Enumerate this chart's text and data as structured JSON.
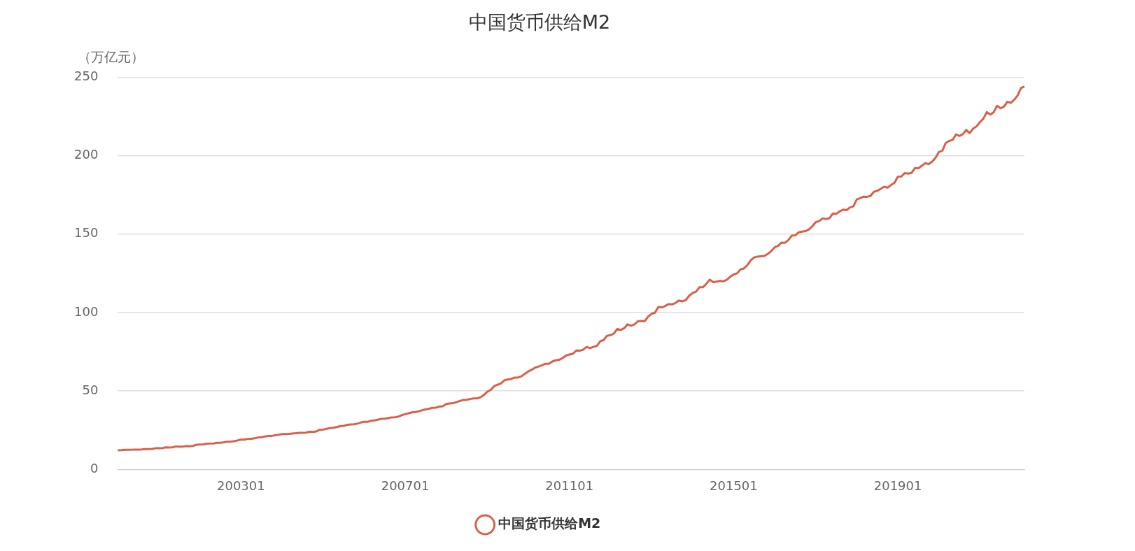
{
  "chart_data": {
    "type": "line",
    "title": "中国货币供给M2",
    "ylabel": "（万亿元）",
    "categories": [
      null,
      null,
      null,
      null,
      null,
      null,
      null,
      null,
      null,
      null,
      null,
      null,
      null,
      null,
      null,
      null,
      null,
      null,
      null,
      null,
      null,
      null,
      null,
      null,
      null,
      null,
      null,
      null,
      null,
      null,
      null,
      null,
      null,
      null,
      null,
      null,
      "200301",
      null,
      null,
      null,
      null,
      null,
      null,
      null,
      null,
      null,
      null,
      null,
      null,
      null,
      null,
      null,
      null,
      null,
      null,
      null,
      null,
      null,
      null,
      null,
      null,
      null,
      null,
      null,
      null,
      null,
      null,
      null,
      null,
      null,
      null,
      null,
      null,
      null,
      null,
      null,
      null,
      null,
      null,
      null,
      null,
      null,
      null,
      null,
      "200701",
      null,
      null,
      null,
      null,
      null,
      null,
      null,
      null,
      null,
      null,
      null,
      null,
      null,
      null,
      null,
      null,
      null,
      null,
      null,
      null,
      null,
      null,
      null,
      null,
      null,
      null,
      null,
      null,
      null,
      null,
      null,
      null,
      null,
      null,
      null,
      null,
      null,
      null,
      null,
      null,
      null,
      null,
      null,
      null,
      null,
      null,
      null,
      "201101",
      null,
      null,
      null,
      null,
      null,
      null,
      null,
      null,
      null,
      null,
      null,
      null,
      null,
      null,
      null,
      null,
      null,
      null,
      null,
      null,
      null,
      null,
      null,
      null,
      null,
      null,
      null,
      null,
      null,
      null,
      null,
      null,
      null,
      null,
      null,
      null,
      null,
      null,
      null,
      null,
      null,
      null,
      null,
      null,
      null,
      null,
      null,
      "201501",
      null,
      null,
      null,
      null,
      null,
      null,
      null,
      null,
      null,
      null,
      null,
      null,
      null,
      null,
      null,
      null,
      null,
      null,
      null,
      null,
      null,
      null,
      null,
      null,
      null,
      null,
      null,
      null,
      null,
      null,
      null,
      null,
      null,
      null,
      null,
      null,
      null,
      null,
      null,
      null,
      null,
      null,
      null,
      null,
      null,
      null,
      null,
      "201901",
      null,
      null,
      null,
      null,
      null,
      null,
      null,
      null,
      null,
      null,
      null,
      null,
      null,
      null,
      null,
      null,
      null,
      null,
      null,
      null,
      null,
      null,
      null,
      null,
      null,
      null,
      null,
      null,
      null,
      null,
      null,
      null,
      null,
      null,
      null,
      null,
      null
    ],
    "series": [
      {
        "name": "中国货币供给M2",
        "color": "#d9604a",
        "values": [
          12.2,
          12.3,
          12.5,
          12.5,
          12.6,
          12.7,
          12.7,
          12.8,
          13.0,
          13.0,
          13.1,
          13.5,
          13.6,
          13.6,
          14.1,
          14.0,
          14.1,
          14.7,
          14.5,
          14.6,
          14.9,
          14.8,
          15.0,
          15.8,
          15.9,
          16.0,
          16.4,
          16.5,
          16.6,
          17.0,
          17.0,
          17.3,
          17.7,
          17.8,
          18.0,
          18.5,
          19.0,
          19.0,
          19.5,
          19.6,
          19.9,
          20.4,
          20.6,
          21.0,
          21.3,
          21.4,
          21.8,
          22.1,
          22.6,
          22.6,
          22.7,
          22.9,
          23.1,
          23.4,
          23.3,
          23.5,
          24.0,
          23.9,
          24.2,
          25.3,
          25.4,
          25.9,
          26.4,
          26.6,
          27.0,
          27.6,
          27.8,
          28.4,
          28.7,
          28.8,
          29.2,
          29.9,
          30.4,
          30.4,
          31.0,
          31.3,
          31.7,
          32.3,
          32.4,
          32.7,
          33.2,
          33.3,
          33.7,
          34.6,
          35.2,
          35.8,
          36.4,
          36.6,
          37.1,
          37.8,
          38.3,
          38.7,
          39.3,
          39.4,
          40.1,
          40.3,
          41.7,
          42.1,
          42.3,
          42.9,
          43.7,
          44.3,
          44.4,
          44.9,
          45.3,
          45.3,
          46.0,
          47.5,
          49.6,
          50.7,
          53.1,
          54.0,
          54.8,
          56.9,
          57.3,
          57.7,
          58.6,
          58.6,
          59.4,
          61.0,
          62.5,
          63.6,
          64.9,
          65.6,
          66.4,
          67.4,
          67.4,
          68.8,
          69.6,
          69.9,
          71.0,
          72.6,
          73.3,
          73.7,
          75.8,
          75.7,
          76.3,
          78.1,
          77.3,
          78.1,
          78.7,
          81.7,
          82.5,
          85.2,
          85.6,
          86.7,
          89.6,
          88.9,
          90.0,
          92.5,
          91.6,
          92.5,
          94.4,
          94.6,
          94.5,
          97.4,
          99.2,
          99.9,
          103.6,
          103.3,
          104.2,
          105.4,
          105.2,
          106.1,
          107.7,
          107.1,
          107.9,
          110.7,
          112.4,
          113.3,
          116.1,
          116.1,
          118.2,
          121.0,
          119.4,
          119.7,
          120.2,
          119.9,
          120.9,
          122.8,
          124.3,
          125.0,
          127.5,
          128.1,
          130.2,
          133.3,
          135.1,
          135.7,
          135.9,
          136.1,
          137.4,
          139.2,
          141.6,
          142.5,
          144.6,
          144.5,
          146.2,
          149.0,
          149.2,
          151.1,
          151.6,
          151.9,
          153.0,
          155.0,
          157.6,
          158.3,
          160.0,
          159.6,
          160.1,
          163.1,
          162.9,
          164.5,
          165.6,
          165.3,
          167.0,
          167.7,
          172.1,
          172.9,
          173.9,
          173.8,
          174.3,
          177.0,
          177.6,
          178.9,
          180.2,
          179.6,
          181.3,
          182.7,
          186.6,
          186.7,
          188.9,
          188.6,
          189.0,
          192.1,
          191.9,
          193.6,
          195.2,
          194.6,
          196.1,
          198.6,
          202.3,
          203.1,
          208.1,
          209.4,
          210.0,
          213.5,
          212.6,
          213.7,
          216.4,
          214.4,
          217.2,
          218.7,
          221.3,
          223.6,
          227.7,
          226.2,
          227.6,
          231.8,
          230.2,
          231.2,
          234.3,
          233.6,
          235.6,
          238.3,
          243.1,
          244.1
        ]
      }
    ],
    "ylim": [
      0,
      250
    ],
    "yticks": [
      0,
      50,
      100,
      150,
      200,
      250
    ],
    "grid": "y",
    "legend": "bottom",
    "marker": "none",
    "line_style": "solid"
  }
}
